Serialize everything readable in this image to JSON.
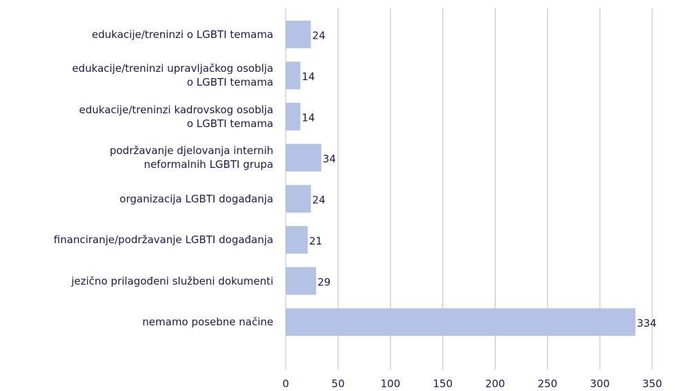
{
  "chart_data": {
    "type": "barh",
    "categories": [
      "edukacije/treninzi o LGBTI temama",
      "edukacije/treninzi upravljačkog osoblja\no LGBTI temama",
      "edukacije/treninzi kadrovskog osoblja\no LGBTI temama",
      "podržavanje djelovanja internih\nneformalnih LGBTI grupa",
      "organizacija LGBTI događanja",
      "financiranje/podržavanje LGBTI događanja",
      "jezično prilagođeni  službeni dokumenti",
      "nemamo posebne načine"
    ],
    "values": [
      24,
      14,
      14,
      34,
      24,
      21,
      29,
      334
    ],
    "color": "#b4c3e4",
    "xlim": [
      0,
      350
    ],
    "xticks": [
      0,
      50,
      100,
      150,
      200,
      250,
      300,
      350
    ],
    "grid": true
  }
}
